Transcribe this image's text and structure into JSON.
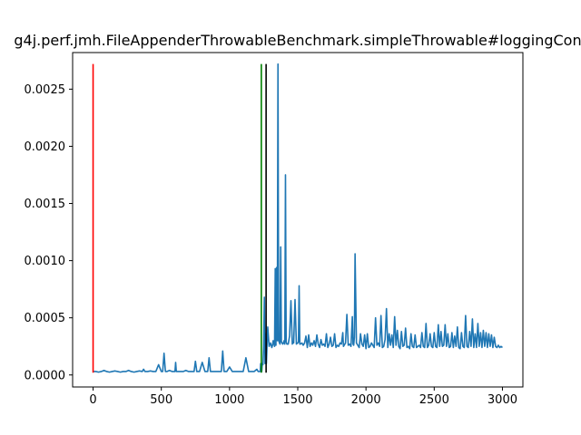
{
  "chart_data": {
    "type": "line",
    "title": "g4j.perf.jmh.FileAppenderThrowableBenchmark.simpleThrowable#loggingCon",
    "xlabel": "",
    "ylabel": "",
    "xlim": [
      -150,
      3150
    ],
    "ylim": [
      -0.000105,
      0.00282
    ],
    "x_ticks": [
      0,
      500,
      1000,
      1500,
      2000,
      2500,
      3000
    ],
    "x_tick_labels": [
      "0",
      "500",
      "1000",
      "1500",
      "2000",
      "2500",
      "3000"
    ],
    "y_ticks": [
      0.0,
      0.0005,
      0.001,
      0.0015,
      0.002,
      0.0025
    ],
    "y_tick_labels": [
      "0.0000",
      "0.0005",
      "0.0010",
      "0.0015",
      "0.0020",
      "0.0025"
    ],
    "grid": false,
    "series_color": "#1f77b4",
    "series": [
      {
        "x": [
          0,
          20,
          40,
          60,
          80,
          100,
          120,
          140,
          160,
          180,
          200,
          220,
          240,
          260,
          280,
          300,
          320,
          340,
          360,
          370,
          380,
          400,
          420,
          440,
          460,
          480,
          500,
          510,
          520,
          530,
          540,
          560,
          580,
          600,
          605,
          610,
          620,
          640,
          660,
          680,
          700,
          720,
          740,
          750,
          760,
          780,
          800,
          820,
          840,
          850,
          860,
          880,
          900,
          920,
          940,
          950,
          960,
          980,
          1000,
          1020,
          1040,
          1060,
          1070,
          1080,
          1100,
          1120,
          1140,
          1160,
          1180,
          1200,
          1210,
          1220,
          1225,
          1228,
          1232,
          1236,
          1240,
          1245,
          1250,
          1255,
          1260,
          1265,
          1270,
          1280,
          1290,
          1300,
          1310,
          1315,
          1320,
          1330,
          1335,
          1340,
          1345,
          1350,
          1355,
          1360,
          1370,
          1375,
          1380,
          1390,
          1395,
          1400,
          1405,
          1410,
          1415,
          1420,
          1430,
          1440,
          1450,
          1460,
          1465,
          1470,
          1480,
          1490,
          1500,
          1505,
          1510,
          1515,
          1520,
          1530,
          1540,
          1550,
          1560,
          1570,
          1580,
          1590,
          1600,
          1610,
          1620,
          1630,
          1640,
          1650,
          1660,
          1670,
          1680,
          1690,
          1700,
          1710,
          1720,
          1730,
          1740,
          1750,
          1760,
          1770,
          1780,
          1790,
          1800,
          1810,
          1820,
          1830,
          1835,
          1840,
          1850,
          1860,
          1870,
          1880,
          1890,
          1900,
          1905,
          1910,
          1915,
          1920,
          1930,
          1940,
          1950,
          1960,
          1970,
          1980,
          1990,
          2000,
          2010,
          2020,
          2030,
          2040,
          2050,
          2060,
          2070,
          2080,
          2090,
          2100,
          2110,
          2120,
          2130,
          2140,
          2150,
          2160,
          2170,
          2180,
          2190,
          2200,
          2210,
          2220,
          2230,
          2240,
          2250,
          2260,
          2270,
          2280,
          2290,
          2300,
          2310,
          2320,
          2330,
          2340,
          2350,
          2360,
          2370,
          2380,
          2390,
          2400,
          2410,
          2420,
          2430,
          2440,
          2450,
          2460,
          2470,
          2480,
          2490,
          2500,
          2510,
          2520,
          2530,
          2540,
          2550,
          2560,
          2570,
          2580,
          2590,
          2600,
          2610,
          2620,
          2630,
          2640,
          2650,
          2660,
          2670,
          2680,
          2690,
          2700,
          2710,
          2720,
          2730,
          2740,
          2750,
          2760,
          2770,
          2780,
          2790,
          2800,
          2810,
          2820,
          2830,
          2840,
          2850,
          2860,
          2870,
          2880,
          2890,
          2900,
          2910,
          2920,
          2930,
          2940,
          2950,
          2960,
          2970,
          2980,
          2990,
          3000
        ],
        "values": [
          3e-05,
          3e-05,
          2.5e-05,
          3e-05,
          4e-05,
          3e-05,
          2.5e-05,
          3e-05,
          3.5e-05,
          3e-05,
          2.5e-05,
          3e-05,
          3e-05,
          4e-05,
          3e-05,
          2.5e-05,
          3e-05,
          3.5e-05,
          3e-05,
          5e-05,
          3e-05,
          3e-05,
          3.5e-05,
          3e-05,
          3e-05,
          9e-05,
          3e-05,
          3e-05,
          0.00019,
          3e-05,
          3e-05,
          4e-05,
          3e-05,
          3e-05,
          0.00011,
          3e-05,
          3e-05,
          3e-05,
          3e-05,
          4e-05,
          3e-05,
          3e-05,
          3e-05,
          0.00012,
          3e-05,
          3e-05,
          0.00011,
          3e-05,
          3e-05,
          0.00015,
          3e-05,
          3e-05,
          3e-05,
          3e-05,
          3e-05,
          0.00021,
          3e-05,
          3e-05,
          7e-05,
          3e-05,
          3e-05,
          3e-05,
          3e-05,
          3e-05,
          3e-05,
          0.00015,
          3e-05,
          3e-05,
          3e-05,
          5e-05,
          3e-05,
          3e-05,
          3e-05,
          0.0001,
          3e-05,
          3e-05,
          0.0001,
          9e-05,
          0.00025,
          0.00068,
          0.0001,
          0.00036,
          0.0001,
          0.00042,
          0.00025,
          0.00028,
          0.00024,
          0.00026,
          0.0003,
          0.00025,
          0.00093,
          0.00026,
          0.00094,
          0.0003,
          0.00272,
          0.0003,
          0.00027,
          0.00112,
          0.00029,
          0.00027,
          0.00028,
          0.0003,
          0.00027,
          0.00175,
          0.00029,
          0.00027,
          0.00027,
          0.00034,
          0.00065,
          0.00027,
          0.00029,
          0.00028,
          0.00066,
          0.00027,
          0.00028,
          0.00029,
          0.00078,
          0.00027,
          0.00027,
          0.00028,
          0.00026,
          0.00028,
          0.00034,
          0.00024,
          0.00035,
          0.00025,
          0.00028,
          0.00026,
          0.0003,
          0.00025,
          0.00035,
          0.00027,
          0.00024,
          0.00031,
          0.00026,
          0.00027,
          0.00025,
          0.00036,
          0.00024,
          0.00027,
          0.00033,
          0.00025,
          0.00026,
          0.00036,
          0.00024,
          0.00026,
          0.00025,
          0.00028,
          0.00027,
          0.00037,
          0.00025,
          0.00026,
          0.00028,
          0.00053,
          0.00026,
          0.00027,
          0.00025,
          0.00051,
          0.00027,
          0.00026,
          0.00033,
          0.00106,
          0.00028,
          0.00026,
          0.00024,
          0.00036,
          0.00027,
          0.00025,
          0.00035,
          0.00023,
          0.00036,
          0.00024,
          0.00025,
          0.00028,
          0.00026,
          0.00024,
          0.0005,
          0.00026,
          0.00028,
          0.00025,
          0.00052,
          0.00024,
          0.00025,
          0.00031,
          0.00058,
          0.00024,
          0.00036,
          0.00026,
          0.00035,
          0.00024,
          0.00051,
          0.00026,
          0.00039,
          0.00025,
          0.00023,
          0.00038,
          0.00025,
          0.00026,
          0.00041,
          0.00024,
          0.00025,
          0.00023,
          0.00036,
          0.00025,
          0.00024,
          0.00035,
          0.00024,
          0.00025,
          0.00026,
          0.00024,
          0.00037,
          0.00025,
          0.00024,
          0.00045,
          0.00024,
          0.00026,
          0.00036,
          0.00025,
          0.00024,
          0.00037,
          0.00025,
          0.00024,
          0.00044,
          0.00025,
          0.00038,
          0.00025,
          0.00026,
          0.00044,
          0.00025,
          0.00036,
          0.00024,
          0.00025,
          0.00037,
          0.00024,
          0.00034,
          0.00025,
          0.00042,
          0.00024,
          0.00023,
          0.00037,
          0.00025,
          0.00024,
          0.00052,
          0.00025,
          0.00024,
          0.00038,
          0.00025,
          0.00049,
          0.00024,
          0.00036,
          0.00024,
          0.00045,
          0.00025,
          0.00037,
          0.00024,
          0.00039,
          0.00025,
          0.00037,
          0.00024,
          0.00036,
          0.00025,
          0.00035,
          0.00024,
          0.00033,
          0.00025,
          0.00024,
          0.00026,
          0.00024,
          0.00025,
          0.00024
        ]
      }
    ],
    "vlines": [
      {
        "x": 0,
        "y_from": 2e-05,
        "y_to": 0.00272,
        "color": "#ff0000"
      },
      {
        "x": 1233,
        "y_from": 2e-05,
        "y_to": 0.00272,
        "color": "#008000"
      },
      {
        "x": 1268,
        "y_from": 2e-05,
        "y_to": 0.00272,
        "color": "#000000"
      }
    ]
  }
}
